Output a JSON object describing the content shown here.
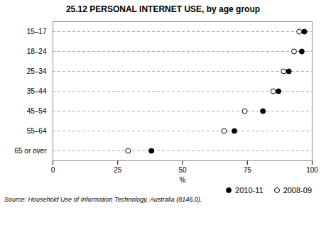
{
  "chart_data": {
    "type": "dot",
    "title": "25.12   PERSONAL INTERNET USE, by age group",
    "categories": [
      "15–17",
      "18–24",
      "25–34",
      "35–44",
      "45–54",
      "55–64",
      "65 or over"
    ],
    "series": [
      {
        "name": "2010-11",
        "color": "#000000",
        "marker": "circle",
        "values": [
          97,
          96,
          91,
          87,
          81,
          70,
          38
        ]
      },
      {
        "name": "2008-09",
        "color": "#000000",
        "marker": "open",
        "values": [
          95,
          93,
          89,
          85,
          74,
          66,
          29
        ]
      }
    ],
    "xlabel": "%",
    "xlim": [
      0,
      100
    ],
    "xticks": [
      0,
      25,
      50,
      75,
      100
    ],
    "grid": true,
    "legend": "lower right",
    "annotations": [
      "Source: Household Use of Information Technology, Australia (8146.0)."
    ]
  }
}
